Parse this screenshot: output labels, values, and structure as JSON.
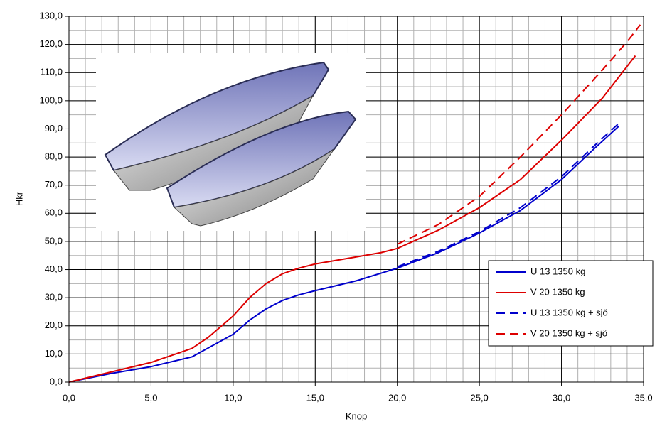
{
  "chart_data": {
    "type": "line",
    "x_label": "Knop",
    "y_label": "Hkr",
    "xlim": [
      0,
      35
    ],
    "ylim": [
      0,
      130
    ],
    "xticks": [
      {
        "value": 0,
        "label": "0,0"
      },
      {
        "value": 5,
        "label": "5,0"
      },
      {
        "value": 10,
        "label": "10,0"
      },
      {
        "value": 15,
        "label": "15,0"
      },
      {
        "value": 20,
        "label": "20,0"
      },
      {
        "value": 25,
        "label": "25,0"
      },
      {
        "value": 30,
        "label": "30,0"
      },
      {
        "value": 35,
        "label": "35,0"
      }
    ],
    "yticks": [
      {
        "value": 0,
        "label": "0,0"
      },
      {
        "value": 10,
        "label": "10,0"
      },
      {
        "value": 20,
        "label": "20,0"
      },
      {
        "value": 30,
        "label": "30,0"
      },
      {
        "value": 40,
        "label": "40,0"
      },
      {
        "value": 50,
        "label": "50,0"
      },
      {
        "value": 60,
        "label": "60,0"
      },
      {
        "value": 70,
        "label": "70,0"
      },
      {
        "value": 80,
        "label": "80,0"
      },
      {
        "value": 90,
        "label": "90,0"
      },
      {
        "value": 100,
        "label": "100,0"
      },
      {
        "value": 110,
        "label": "110,0"
      },
      {
        "value": 120,
        "label": "120,0"
      },
      {
        "value": 130,
        "label": "130,0"
      }
    ],
    "xminor": 1,
    "yminor": 5,
    "grid": true,
    "legend": "lower-right",
    "series": [
      {
        "name": "U 13 1350 kg",
        "color": "#0000cc",
        "style": "solid",
        "x": [
          0,
          2.5,
          5,
          7.5,
          10,
          11,
          12,
          13,
          14,
          15,
          17.5,
          20,
          22.5,
          25,
          27.5,
          30,
          32,
          33.5
        ],
        "values": [
          0,
          3,
          5.5,
          9,
          17,
          22,
          26,
          29,
          31,
          32.5,
          36,
          40.5,
          46,
          53,
          61,
          72,
          83,
          91
        ]
      },
      {
        "name": "V 20 1350 kg",
        "color": "#dd0000",
        "style": "solid",
        "x": [
          0,
          2.5,
          5,
          7.5,
          8.5,
          10,
          11,
          12,
          13,
          14,
          15,
          17.5,
          19,
          20,
          22.5,
          25,
          27.5,
          30,
          32.5,
          34.5
        ],
        "values": [
          0,
          3.5,
          7,
          12,
          16,
          23.5,
          30,
          35,
          38.5,
          40.5,
          42,
          44.5,
          46,
          47.5,
          54,
          62,
          72,
          86,
          101,
          116
        ]
      },
      {
        "name": "U 13 1350 kg + sjö",
        "color": "#0000cc",
        "style": "dashed",
        "x": [
          20,
          22.5,
          25,
          27.5,
          30,
          32,
          33.5
        ],
        "values": [
          41,
          46.5,
          53.5,
          62,
          73,
          84,
          92
        ]
      },
      {
        "name": "V 20 1350 kg + sjö",
        "color": "#dd0000",
        "style": "dashed",
        "x": [
          20,
          22.5,
          25,
          27.5,
          30,
          32.5,
          34,
          34.8
        ],
        "values": [
          49,
          56,
          66,
          80,
          95,
          111,
          121,
          127
        ]
      }
    ]
  }
}
